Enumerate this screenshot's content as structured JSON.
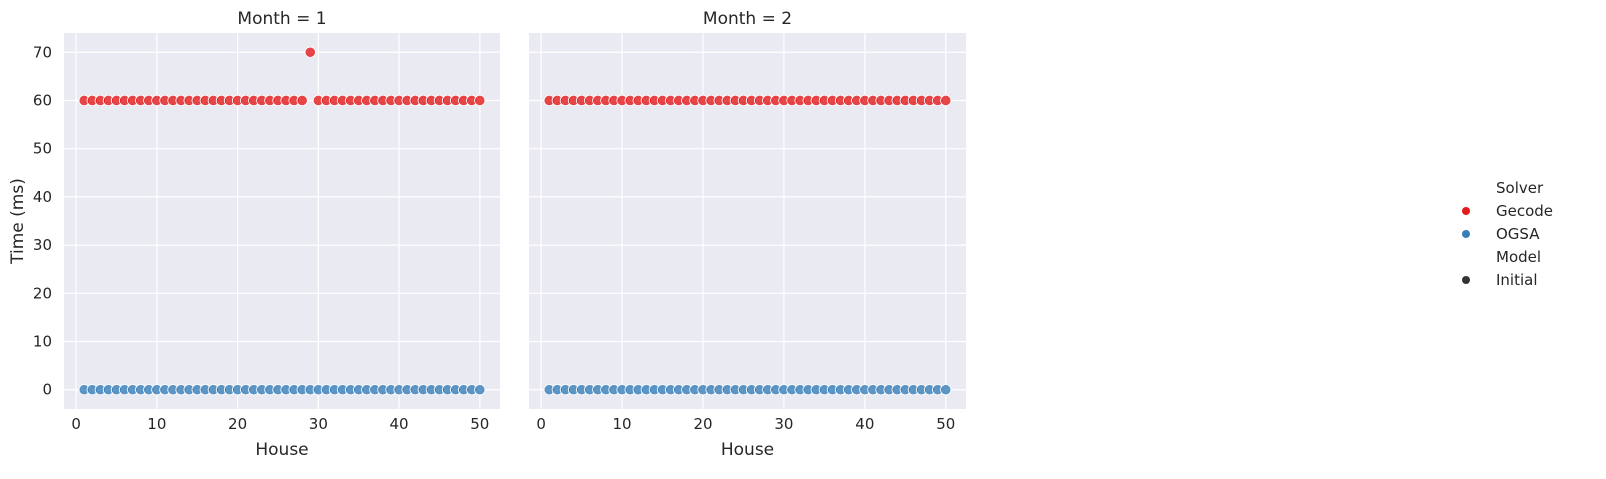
{
  "chart_data": {
    "type": "scatter",
    "facet_prefix": "Month = ",
    "xlabel": "House",
    "ylabel": "Time (ms)",
    "xlim": [
      -1.5,
      52.5
    ],
    "ylim": [
      -4,
      74
    ],
    "xticks": [
      0,
      10,
      20,
      30,
      40,
      50
    ],
    "yticks": [
      0,
      10,
      20,
      30,
      40,
      50,
      60,
      70
    ],
    "grid": true,
    "legend": {
      "placement": "right",
      "hue_title": "Solver",
      "hue_entries": [
        {
          "label": "Gecode",
          "color": "#e41a1c"
        },
        {
          "label": "OGSA",
          "color": "#377eb8"
        }
      ],
      "style_title": "Model",
      "style_entries": [
        {
          "label": "Initial",
          "color": "#333333"
        }
      ]
    },
    "colors": {
      "Gecode": "#e41a1c",
      "OGSA": "#377eb8",
      "background": "#eaeaf2",
      "grid": "#ffffff"
    },
    "panels": [
      {
        "month": "1",
        "title": "Month = 1",
        "series": [
          {
            "name": "Gecode",
            "x": [
              1,
              2,
              3,
              4,
              5,
              6,
              7,
              8,
              9,
              10,
              11,
              12,
              13,
              14,
              15,
              16,
              17,
              18,
              19,
              20,
              21,
              22,
              23,
              24,
              25,
              26,
              27,
              28,
              29,
              30,
              31,
              32,
              33,
              34,
              35,
              36,
              37,
              38,
              39,
              40,
              41,
              42,
              43,
              44,
              45,
              46,
              47,
              48,
              49,
              50
            ],
            "y": [
              60,
              60,
              60,
              60,
              60,
              60,
              60,
              60,
              60,
              60,
              60,
              60,
              60,
              60,
              60,
              60,
              60,
              60,
              60,
              60,
              60,
              60,
              60,
              60,
              60,
              60,
              60,
              60,
              70,
              60,
              60,
              60,
              60,
              60,
              60,
              60,
              60,
              60,
              60,
              60,
              60,
              60,
              60,
              60,
              60,
              60,
              60,
              60,
              60,
              60
            ]
          },
          {
            "name": "OGSA",
            "x": [
              1,
              2,
              3,
              4,
              5,
              6,
              7,
              8,
              9,
              10,
              11,
              12,
              13,
              14,
              15,
              16,
              17,
              18,
              19,
              20,
              21,
              22,
              23,
              24,
              25,
              26,
              27,
              28,
              29,
              30,
              31,
              32,
              33,
              34,
              35,
              36,
              37,
              38,
              39,
              40,
              41,
              42,
              43,
              44,
              45,
              46,
              47,
              48,
              49,
              50
            ],
            "y": [
              0,
              0,
              0,
              0,
              0,
              0,
              0,
              0,
              0,
              0,
              0,
              0,
              0,
              0,
              0,
              0,
              0,
              0,
              0,
              0,
              0,
              0,
              0,
              0,
              0,
              0,
              0,
              0,
              0,
              0,
              0,
              0,
              0,
              0,
              0,
              0,
              0,
              0,
              0,
              0,
              0,
              0,
              0,
              0,
              0,
              0,
              0,
              0,
              0,
              0
            ]
          }
        ]
      },
      {
        "month": "2",
        "title": "Month = 2",
        "series": [
          {
            "name": "Gecode",
            "x": [
              1,
              2,
              3,
              4,
              5,
              6,
              7,
              8,
              9,
              10,
              11,
              12,
              13,
              14,
              15,
              16,
              17,
              18,
              19,
              20,
              21,
              22,
              23,
              24,
              25,
              26,
              27,
              28,
              29,
              30,
              31,
              32,
              33,
              34,
              35,
              36,
              37,
              38,
              39,
              40,
              41,
              42,
              43,
              44,
              45,
              46,
              47,
              48,
              49,
              50
            ],
            "y": [
              60,
              60,
              60,
              60,
              60,
              60,
              60,
              60,
              60,
              60,
              60,
              60,
              60,
              60,
              60,
              60,
              60,
              60,
              60,
              60,
              60,
              60,
              60,
              60,
              60,
              60,
              60,
              60,
              60,
              60,
              60,
              60,
              60,
              60,
              60,
              60,
              60,
              60,
              60,
              60,
              60,
              60,
              60,
              60,
              60,
              60,
              60,
              60,
              60,
              60
            ]
          },
          {
            "name": "OGSA",
            "x": [
              1,
              2,
              3,
              4,
              5,
              6,
              7,
              8,
              9,
              10,
              11,
              12,
              13,
              14,
              15,
              16,
              17,
              18,
              19,
              20,
              21,
              22,
              23,
              24,
              25,
              26,
              27,
              28,
              29,
              30,
              31,
              32,
              33,
              34,
              35,
              36,
              37,
              38,
              39,
              40,
              41,
              42,
              43,
              44,
              45,
              46,
              47,
              48,
              49,
              50
            ],
            "y": [
              0,
              0,
              0,
              0,
              0,
              0,
              0,
              0,
              0,
              0,
              0,
              0,
              0,
              0,
              0,
              0,
              0,
              0,
              0,
              0,
              0,
              0,
              0,
              0,
              0,
              0,
              0,
              0,
              0,
              0,
              0,
              0,
              0,
              0,
              0,
              0,
              0,
              0,
              0,
              0,
              0,
              0,
              0,
              0,
              0,
              0,
              0,
              0,
              0,
              0
            ]
          }
        ]
      }
    ]
  }
}
